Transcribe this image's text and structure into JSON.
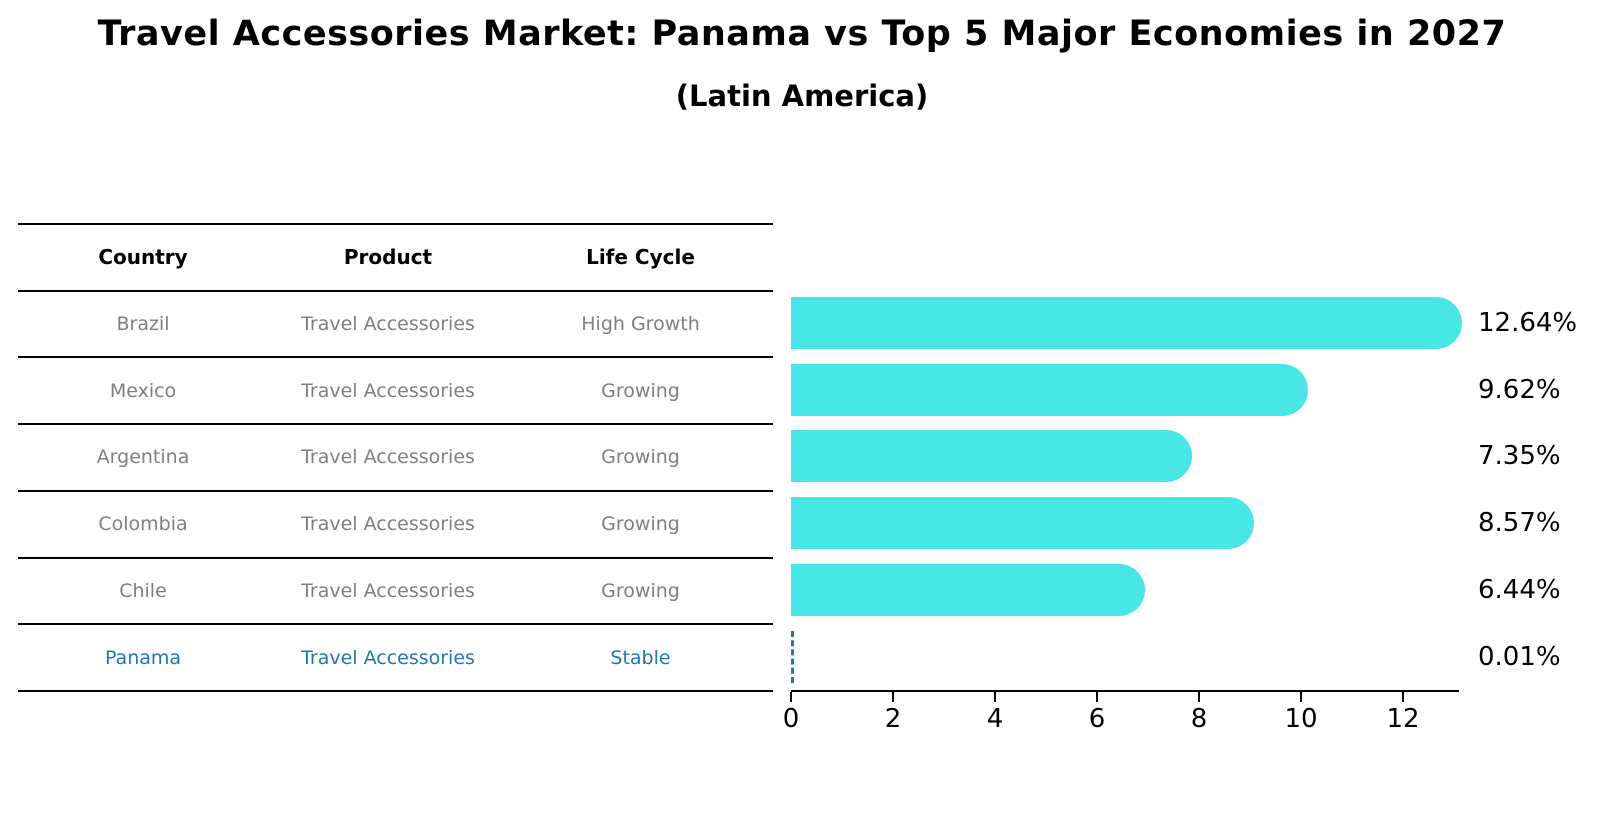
{
  "title": "Travel Accessories Market: Panama vs Top 5 Major Economies in 2027",
  "subtitle": "(Latin America)",
  "table": {
    "headers": [
      "Country",
      "Product",
      "Life Cycle"
    ],
    "rows": [
      {
        "country": "Brazil",
        "product": "Travel Accessories",
        "life_cycle": "High Growth",
        "highlight": false
      },
      {
        "country": "Mexico",
        "product": "Travel Accessories",
        "life_cycle": "Growing",
        "highlight": false
      },
      {
        "country": "Argentina",
        "product": "Travel Accessories",
        "life_cycle": "Growing",
        "highlight": false
      },
      {
        "country": "Colombia",
        "product": "Travel Accessories",
        "life_cycle": "Growing",
        "highlight": false
      },
      {
        "country": "Chile",
        "product": "Travel Accessories",
        "life_cycle": "Growing",
        "highlight": false
      },
      {
        "country": "Panama",
        "product": "Travel Accessories",
        "life_cycle": "Stable",
        "highlight": true
      }
    ]
  },
  "chart_data": {
    "type": "bar",
    "orientation": "horizontal",
    "title": "Travel Accessories Market: Panama vs Top 5 Major Economies in 2027",
    "subtitle": "(Latin America)",
    "categories": [
      "Brazil",
      "Mexico",
      "Argentina",
      "Colombia",
      "Chile",
      "Panama"
    ],
    "values": [
      12.64,
      9.62,
      7.35,
      8.57,
      6.44,
      0.01
    ],
    "value_labels": [
      "12.64%",
      "9.62%",
      "7.35%",
      "8.57%",
      "6.44%",
      "0.01%"
    ],
    "x_ticks": [
      "0",
      "2",
      "4",
      "6",
      "8",
      "10",
      "12"
    ],
    "xlim": [
      0,
      13.1
    ],
    "grid": false,
    "legend": "none",
    "bar_color": "#48e6e4",
    "highlight_index": 5,
    "highlight_style": "dashed-zero-line",
    "highlight_color": "#1f77b4"
  },
  "colors": {
    "background": "#ffffff",
    "bar": "#48e6e4",
    "table_text": "#7f7f7f",
    "header_text": "#000000",
    "highlight_blue": "#1f77b4",
    "axis": "#000000"
  }
}
